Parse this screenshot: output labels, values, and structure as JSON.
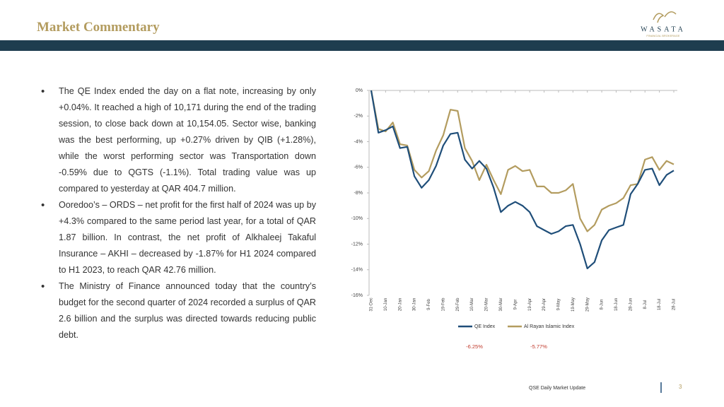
{
  "header": {
    "title": "Market Commentary",
    "logo": "WASATA",
    "logo_tagline": "FINANCIAL BROKERAGE"
  },
  "bullets": [
    "The QE Index ended the day on a flat note, increasing by only +0.04%. It reached a high of 10,171 during the end of the trading session, to close back down at 10,154.05. Sector wise, banking was the best performing, up +0.27% driven by QIB (+1.28%), while the worst performing sector was Transportation down -0.59% due to QGTS (-1.1%). Total trading value was up compared to yesterday at QAR 404.7 million.",
    "Ooredoo’s – ORDS – net profit for the first half of 2024 was up by +4.3% compared to the same period last year, for a total of QAR 1.87 billion. In contrast, the net profit of Alkhaleej Takaful Insurance – AKHI – decreased by -1.87% for H1 2024 compared to H1 2023, to reach QAR 42.76 million.",
    "The Ministry of Finance announced today that the country’s budget for the second quarter of 2024 recorded a surplus of QAR 2.6 billion and the surplus was directed towards reducing public debt."
  ],
  "chart_data": {
    "type": "line",
    "categories": [
      "31-Dec",
      null,
      "10-Jan",
      null,
      "20-Jan",
      null,
      "30-Jan",
      null,
      "9-Feb",
      null,
      "19-Feb",
      null,
      "29-Feb",
      null,
      "10-Mar",
      null,
      "20-Mar",
      null,
      "30-Mar",
      null,
      "9-Apr",
      null,
      "19-Apr",
      null,
      "29-Apr",
      null,
      "9-May",
      null,
      "19-May",
      null,
      "29-May",
      null,
      "8-Jun",
      null,
      "18-Jun",
      null,
      "28-Jun",
      null,
      "8-Jul",
      null,
      "18-Jul",
      null,
      "28-Jul"
    ],
    "series": [
      {
        "name": "QE Index",
        "color": "#1f4e79",
        "last_label": "-6.25%",
        "values": [
          0,
          -3.3,
          -3.1,
          -2.8,
          -4.5,
          -4.4,
          -6.7,
          -7.6,
          -7.0,
          -5.9,
          -4.3,
          -3.4,
          -3.3,
          -5.4,
          -6.1,
          -5.5,
          -6.1,
          -7.6,
          -9.5,
          -9.0,
          -8.7,
          -9.0,
          -9.5,
          -10.6,
          -10.9,
          -11.2,
          -11.0,
          -10.6,
          -10.5,
          -12.0,
          -13.9,
          -13.4,
          -11.7,
          -10.9,
          -10.7,
          -10.5,
          -8.1,
          -7.3,
          -6.2,
          -6.1,
          -7.4,
          -6.6,
          -6.25
        ]
      },
      {
        "name": "Al Rayan Islamic Index",
        "color": "#b39c5f",
        "last_label": "-5.77%",
        "values": [
          0,
          -3.0,
          -3.2,
          -2.5,
          -4.2,
          -4.3,
          -6.2,
          -6.8,
          -6.3,
          -4.7,
          -3.5,
          -1.5,
          -1.6,
          -4.5,
          -5.5,
          -7.0,
          -5.8,
          -7.0,
          -8.1,
          -6.2,
          -5.9,
          -6.3,
          -6.2,
          -7.5,
          -7.5,
          -8.0,
          -8.0,
          -7.8,
          -7.3,
          -10.0,
          -11.0,
          -10.5,
          -9.3,
          -9.0,
          -8.8,
          -8.4,
          -7.4,
          -7.3,
          -5.4,
          -5.2,
          -6.2,
          -5.5,
          -5.77
        ]
      }
    ],
    "ylim": [
      -16,
      0
    ],
    "yticks": [
      {
        "value": 0,
        "label": "0%"
      },
      {
        "value": -2,
        "label": "-2%"
      },
      {
        "value": -4,
        "label": "-4%"
      },
      {
        "value": -6,
        "label": "-6%"
      },
      {
        "value": -8,
        "label": "-8%"
      },
      {
        "value": -10,
        "label": "-10%"
      },
      {
        "value": -12,
        "label": "-12%"
      },
      {
        "value": -14,
        "label": "-14%"
      },
      {
        "value": -16,
        "label": "-16%"
      }
    ],
    "legend": "bottom"
  },
  "footer": {
    "text": "QSE Daily Market Update",
    "page": "3"
  }
}
